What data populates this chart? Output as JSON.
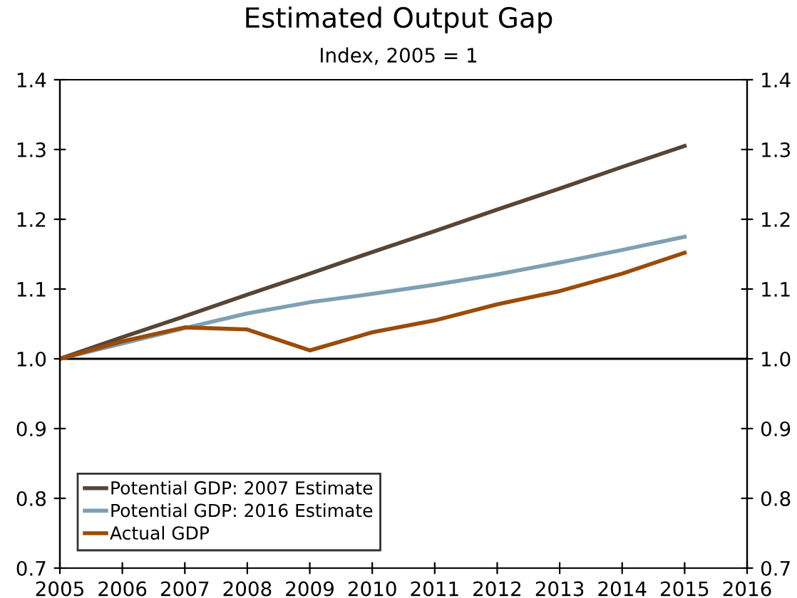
{
  "chart_data": {
    "type": "line",
    "title": "Estimated Output Gap",
    "subtitle": "Index, 2005 = 1",
    "x": [
      2005,
      2006,
      2007,
      2008,
      2009,
      2010,
      2011,
      2012,
      2013,
      2014,
      2015
    ],
    "series": [
      {
        "name": "Potential GDP: 2007 Estimate",
        "color": "#574537",
        "values": [
          1.0,
          1.031,
          1.061,
          1.092,
          1.122,
          1.153,
          1.183,
          1.214,
          1.244,
          1.275,
          1.305
        ]
      },
      {
        "name": "Potential GDP: 2016 Estimate",
        "color": "#7fa0b4",
        "values": [
          1.0,
          1.022,
          1.044,
          1.065,
          1.081,
          1.093,
          1.106,
          1.121,
          1.138,
          1.156,
          1.175
        ]
      },
      {
        "name": "Actual GDP",
        "color": "#9a4c09",
        "values": [
          1.0,
          1.025,
          1.045,
          1.042,
          1.012,
          1.038,
          1.055,
          1.078,
          1.097,
          1.122,
          1.152
        ]
      }
    ],
    "xlim": [
      2005,
      2016
    ],
    "xticks": [
      2005,
      2006,
      2007,
      2008,
      2009,
      2010,
      2011,
      2012,
      2013,
      2014,
      2015,
      2016
    ],
    "ylim": [
      0.7,
      1.4
    ],
    "yticks": [
      0.7,
      0.8,
      0.9,
      {
        "value": 1,
        "label": "1.0"
      },
      1.1,
      1.2,
      1.3,
      1.4
    ],
    "y2lim": [
      0.7,
      1.4
    ],
    "y2ticks": [
      0.7,
      0.8,
      0.9,
      {
        "value": 1,
        "label": "1.0"
      },
      1.1,
      1.2,
      1.3,
      1.4
    ],
    "ref_lines": [
      {
        "axis": "y",
        "value": 1,
        "color": "#000000"
      }
    ],
    "legend": "bottom left",
    "grid": false,
    "marker": "none",
    "line_style": "solid"
  }
}
